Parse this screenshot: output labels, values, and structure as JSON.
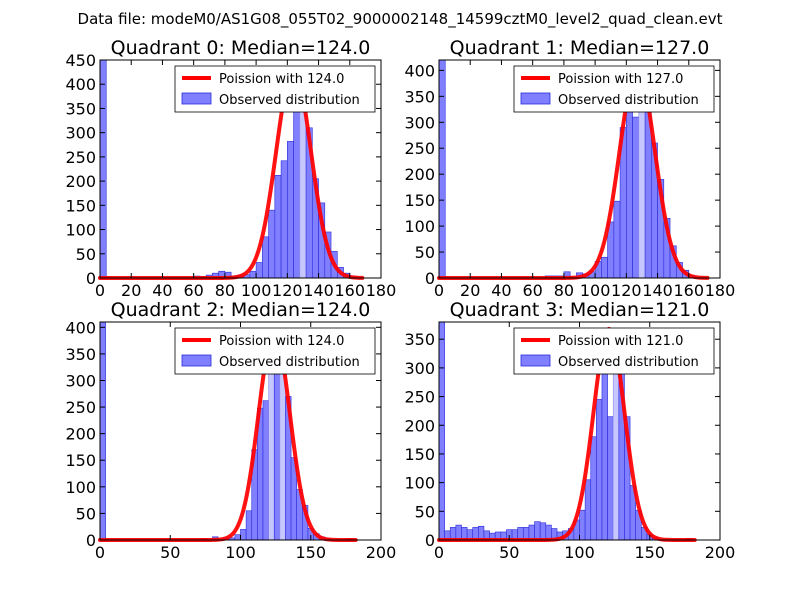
{
  "figure": {
    "suptitle": "Data file: modeM0/AS1G08_055T02_9000002148_14599cztM0_level2_quad_clean.evt"
  },
  "chart_data": [
    {
      "type": "bar",
      "title": "Quadrant 0: Median=124.0",
      "median": 124.0,
      "legend": [
        "Poission with 124.0",
        "Observed distribution"
      ],
      "legend_position": "top-right",
      "xlim": [
        0,
        180
      ],
      "ylim": [
        0,
        450
      ],
      "xticks": [
        0,
        20,
        40,
        60,
        80,
        100,
        120,
        140,
        160,
        180
      ],
      "yticks": [
        0,
        50,
        100,
        150,
        200,
        250,
        300,
        350,
        400,
        450
      ],
      "bin_width": 4,
      "bins": [
        {
          "x": 0,
          "y": 450,
          "light": false
        },
        {
          "x": 60,
          "y": 4,
          "light": false
        },
        {
          "x": 64,
          "y": 3,
          "light": false
        },
        {
          "x": 68,
          "y": 6,
          "light": false
        },
        {
          "x": 72,
          "y": 10,
          "light": false
        },
        {
          "x": 76,
          "y": 14,
          "light": false
        },
        {
          "x": 80,
          "y": 12,
          "light": false
        },
        {
          "x": 84,
          "y": 4,
          "light": false
        },
        {
          "x": 88,
          "y": 6,
          "light": false
        },
        {
          "x": 92,
          "y": 7,
          "light": false
        },
        {
          "x": 96,
          "y": 14,
          "light": false
        },
        {
          "x": 100,
          "y": 32,
          "light": false
        },
        {
          "x": 104,
          "y": 85,
          "light": false
        },
        {
          "x": 108,
          "y": 140,
          "light": false
        },
        {
          "x": 112,
          "y": 212,
          "light": false
        },
        {
          "x": 116,
          "y": 242,
          "light": false
        },
        {
          "x": 120,
          "y": 282,
          "light": false
        },
        {
          "x": 124,
          "y": 345,
          "light": false
        },
        {
          "x": 128,
          "y": 430,
          "light": true
        },
        {
          "x": 132,
          "y": 310,
          "light": false
        },
        {
          "x": 136,
          "y": 205,
          "light": false
        },
        {
          "x": 140,
          "y": 155,
          "light": false
        },
        {
          "x": 144,
          "y": 95,
          "light": false
        },
        {
          "x": 148,
          "y": 55,
          "light": false
        },
        {
          "x": 152,
          "y": 22,
          "light": false
        },
        {
          "x": 156,
          "y": 10,
          "light": false
        },
        {
          "x": 160,
          "y": 4,
          "light": false
        }
      ],
      "poisson_curve": {
        "x_range": [
          0,
          168
        ],
        "peak": 432,
        "mean": 124.0
      }
    },
    {
      "type": "bar",
      "title": "Quadrant 1: Median=127.0",
      "median": 127.0,
      "legend": [
        "Poission with 127.0",
        "Observed distribution"
      ],
      "legend_position": "top-right",
      "xlim": [
        0,
        180
      ],
      "ylim": [
        0,
        420
      ],
      "xticks": [
        0,
        20,
        40,
        60,
        80,
        100,
        120,
        140,
        160,
        180
      ],
      "yticks": [
        0,
        50,
        100,
        150,
        200,
        250,
        300,
        350,
        400
      ],
      "bin_width": 4,
      "bins": [
        {
          "x": 0,
          "y": 420,
          "light": false
        },
        {
          "x": 68,
          "y": 4,
          "light": false
        },
        {
          "x": 72,
          "y": 4,
          "light": false
        },
        {
          "x": 76,
          "y": 4,
          "light": false
        },
        {
          "x": 80,
          "y": 12,
          "light": false
        },
        {
          "x": 84,
          "y": 2,
          "light": false
        },
        {
          "x": 88,
          "y": 10,
          "light": false
        },
        {
          "x": 92,
          "y": 8,
          "light": false
        },
        {
          "x": 96,
          "y": 12,
          "light": false
        },
        {
          "x": 100,
          "y": 32,
          "light": false
        },
        {
          "x": 104,
          "y": 40,
          "light": false
        },
        {
          "x": 108,
          "y": 108,
          "light": false
        },
        {
          "x": 112,
          "y": 148,
          "light": false
        },
        {
          "x": 116,
          "y": 290,
          "light": false
        },
        {
          "x": 120,
          "y": 340,
          "light": false
        },
        {
          "x": 124,
          "y": 310,
          "light": false
        },
        {
          "x": 128,
          "y": 405,
          "light": true
        },
        {
          "x": 132,
          "y": 350,
          "light": false
        },
        {
          "x": 136,
          "y": 260,
          "light": false
        },
        {
          "x": 140,
          "y": 190,
          "light": false
        },
        {
          "x": 144,
          "y": 115,
          "light": false
        },
        {
          "x": 148,
          "y": 62,
          "light": false
        },
        {
          "x": 152,
          "y": 30,
          "light": false
        },
        {
          "x": 156,
          "y": 15,
          "light": false
        },
        {
          "x": 160,
          "y": 5,
          "light": false
        }
      ],
      "poisson_curve": {
        "x_range": [
          0,
          172
        ],
        "peak": 405,
        "mean": 127.0
      }
    },
    {
      "type": "bar",
      "title": "Quadrant 2: Median=124.0",
      "median": 124.0,
      "legend": [
        "Poission with 124.0",
        "Observed distribution"
      ],
      "legend_position": "top-right",
      "xlim": [
        0,
        200
      ],
      "ylim": [
        0,
        410
      ],
      "xticks": [
        0,
        50,
        100,
        150,
        200
      ],
      "yticks": [
        0,
        50,
        100,
        150,
        200,
        250,
        300,
        350,
        400
      ],
      "bin_width": 4,
      "bins": [
        {
          "x": 0,
          "y": 410,
          "light": false
        },
        {
          "x": 72,
          "y": 3,
          "light": false
        },
        {
          "x": 80,
          "y": 6,
          "light": false
        },
        {
          "x": 88,
          "y": 4,
          "light": false
        },
        {
          "x": 92,
          "y": 4,
          "light": false
        },
        {
          "x": 96,
          "y": 10,
          "light": false
        },
        {
          "x": 100,
          "y": 20,
          "light": false
        },
        {
          "x": 104,
          "y": 55,
          "light": false
        },
        {
          "x": 108,
          "y": 170,
          "light": false
        },
        {
          "x": 112,
          "y": 248,
          "light": false
        },
        {
          "x": 116,
          "y": 262,
          "light": false
        },
        {
          "x": 120,
          "y": 385,
          "light": true
        },
        {
          "x": 124,
          "y": 355,
          "light": false
        },
        {
          "x": 128,
          "y": 385,
          "light": true
        },
        {
          "x": 132,
          "y": 270,
          "light": false
        },
        {
          "x": 136,
          "y": 155,
          "light": false
        },
        {
          "x": 140,
          "y": 95,
          "light": false
        },
        {
          "x": 144,
          "y": 65,
          "light": false
        },
        {
          "x": 148,
          "y": 22,
          "light": false
        },
        {
          "x": 152,
          "y": 12,
          "light": false
        },
        {
          "x": 156,
          "y": 6,
          "light": false
        },
        {
          "x": 160,
          "y": 3,
          "light": false
        },
        {
          "x": 176,
          "y": 3,
          "light": false
        }
      ],
      "poisson_curve": {
        "x_range": [
          0,
          182
        ],
        "peak": 392,
        "mean": 124.0
      }
    },
    {
      "type": "bar",
      "title": "Quadrant 3: Median=121.0",
      "median": 121.0,
      "legend": [
        "Poission with 121.0",
        "Observed distribution"
      ],
      "legend_position": "top-right",
      "xlim": [
        0,
        200
      ],
      "ylim": [
        0,
        380
      ],
      "xticks": [
        0,
        50,
        100,
        150,
        200
      ],
      "yticks": [
        0,
        50,
        100,
        150,
        200,
        250,
        300,
        350
      ],
      "bin_width": 4,
      "bins": [
        {
          "x": 0,
          "y": 380,
          "light": false
        },
        {
          "x": 4,
          "y": 16,
          "light": false
        },
        {
          "x": 8,
          "y": 22,
          "light": false
        },
        {
          "x": 12,
          "y": 26,
          "light": false
        },
        {
          "x": 16,
          "y": 22,
          "light": false
        },
        {
          "x": 20,
          "y": 18,
          "light": false
        },
        {
          "x": 24,
          "y": 22,
          "light": false
        },
        {
          "x": 28,
          "y": 24,
          "light": false
        },
        {
          "x": 32,
          "y": 16,
          "light": false
        },
        {
          "x": 36,
          "y": 12,
          "light": false
        },
        {
          "x": 40,
          "y": 14,
          "light": false
        },
        {
          "x": 44,
          "y": 14,
          "light": false
        },
        {
          "x": 48,
          "y": 18,
          "light": false
        },
        {
          "x": 52,
          "y": 18,
          "light": false
        },
        {
          "x": 56,
          "y": 22,
          "light": false
        },
        {
          "x": 60,
          "y": 22,
          "light": false
        },
        {
          "x": 64,
          "y": 26,
          "light": false
        },
        {
          "x": 68,
          "y": 32,
          "light": false
        },
        {
          "x": 72,
          "y": 30,
          "light": false
        },
        {
          "x": 76,
          "y": 26,
          "light": false
        },
        {
          "x": 80,
          "y": 20,
          "light": false
        },
        {
          "x": 84,
          "y": 14,
          "light": false
        },
        {
          "x": 88,
          "y": 16,
          "light": false
        },
        {
          "x": 92,
          "y": 20,
          "light": false
        },
        {
          "x": 96,
          "y": 35,
          "light": false
        },
        {
          "x": 100,
          "y": 52,
          "light": false
        },
        {
          "x": 104,
          "y": 105,
          "light": false
        },
        {
          "x": 108,
          "y": 180,
          "light": false
        },
        {
          "x": 112,
          "y": 245,
          "light": false
        },
        {
          "x": 116,
          "y": 310,
          "light": false
        },
        {
          "x": 120,
          "y": 215,
          "light": false
        },
        {
          "x": 124,
          "y": 365,
          "light": true
        },
        {
          "x": 128,
          "y": 300,
          "light": false
        },
        {
          "x": 132,
          "y": 215,
          "light": false
        },
        {
          "x": 136,
          "y": 95,
          "light": false
        },
        {
          "x": 140,
          "y": 52,
          "light": false
        },
        {
          "x": 144,
          "y": 22,
          "light": false
        },
        {
          "x": 148,
          "y": 10,
          "light": false
        },
        {
          "x": 152,
          "y": 5,
          "light": false
        },
        {
          "x": 176,
          "y": 3,
          "light": false
        }
      ],
      "poisson_curve": {
        "x_range": [
          0,
          182
        ],
        "peak": 368,
        "mean": 121.0
      }
    }
  ]
}
